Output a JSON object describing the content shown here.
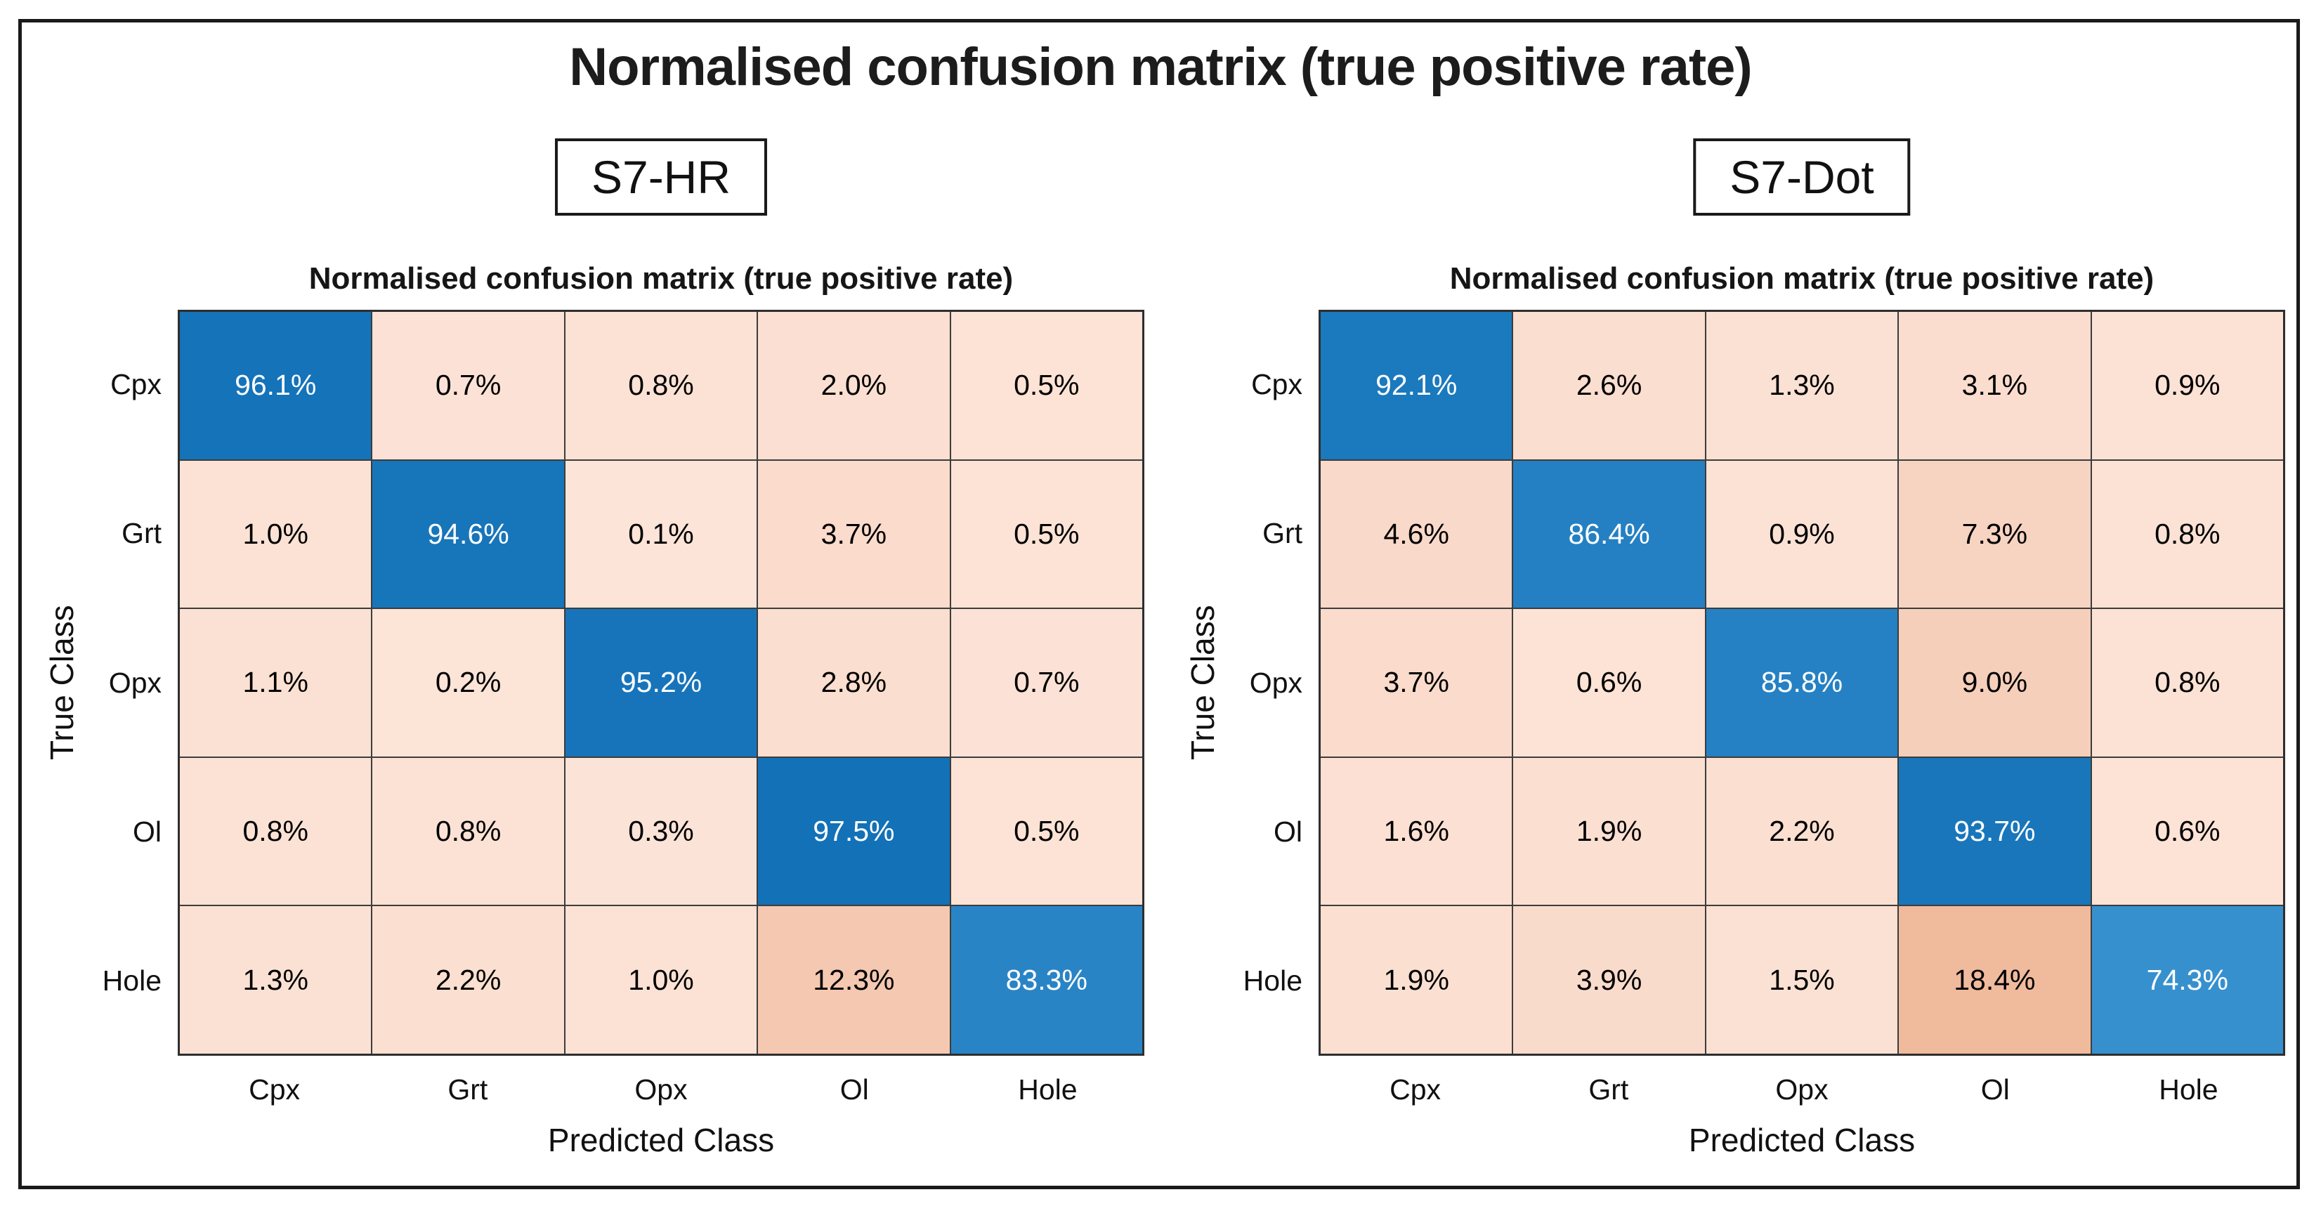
{
  "main_title": "Normalised confusion matrix (true positive rate)",
  "colors": {
    "diag_low": "#3e96d2",
    "diag_high": "#0f6eb5",
    "offdiag_low": "#fce4d8",
    "offdiag_high": "#efb698",
    "diag_text": "#ffffff",
    "offdiag_text": "#000000",
    "grid_line": "#3c3c3c",
    "frame_border": "#1a1a1a"
  },
  "chart_data": [
    {
      "type": "heatmap",
      "panel_label": "S7-HR",
      "title": "Normalised confusion matrix (true positive rate)",
      "xlabel": "Predicted Class",
      "ylabel": "True Class",
      "categories": [
        "Cpx",
        "Grt",
        "Opx",
        "Ol",
        "Hole"
      ],
      "unit": "%",
      "value_format": "one_decimal_percent",
      "matrix": [
        [
          96.1,
          0.7,
          0.8,
          2.0,
          0.5
        ],
        [
          1.0,
          94.6,
          0.1,
          3.7,
          0.5
        ],
        [
          1.1,
          0.2,
          95.2,
          2.8,
          0.7
        ],
        [
          0.8,
          0.8,
          0.3,
          97.5,
          0.5
        ],
        [
          1.3,
          2.2,
          1.0,
          12.3,
          83.3
        ]
      ]
    },
    {
      "type": "heatmap",
      "panel_label": "S7-Dot",
      "title": "Normalised confusion matrix (true positive rate)",
      "xlabel": "Predicted Class",
      "ylabel": "True Class",
      "categories": [
        "Cpx",
        "Grt",
        "Opx",
        "Ol",
        "Hole"
      ],
      "unit": "%",
      "value_format": "one_decimal_percent",
      "matrix": [
        [
          92.1,
          2.6,
          1.3,
          3.1,
          0.9
        ],
        [
          4.6,
          86.4,
          0.9,
          7.3,
          0.8
        ],
        [
          3.7,
          0.6,
          85.8,
          9.0,
          0.8
        ],
        [
          1.6,
          1.9,
          2.2,
          93.7,
          0.6
        ],
        [
          1.9,
          3.9,
          1.5,
          18.4,
          74.3
        ]
      ]
    }
  ]
}
